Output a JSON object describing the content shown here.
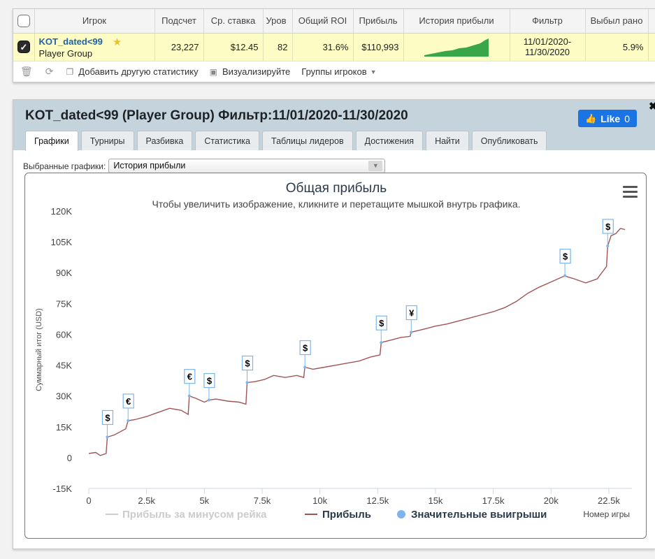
{
  "table": {
    "headers": [
      "Игрок",
      "Подсчет",
      "Ср. ставка",
      "Уров",
      "Общий ROI",
      "Прибыль",
      "История прибыли",
      "Фильтр",
      "Выбыл рано"
    ],
    "row": {
      "player": "KOT_dated<99",
      "group": "Player Group",
      "count": "23,227",
      "avg_stake": "$12.45",
      "level": "82",
      "roi": "31.6%",
      "profit": "$110,993",
      "filter_from": "11/01/2020-",
      "filter_to": "11/30/2020",
      "early_out": "5.9%"
    }
  },
  "toolbar": {
    "add_stat": "Добавить другую статистику",
    "visualize": "Визуализируйте",
    "groups": "Группы игроков"
  },
  "panel": {
    "title": "KOT_dated<99 (Player Group) Фильтр:11/01/2020-11/30/2020",
    "like_label": "Like",
    "like_count": "0",
    "tabs": [
      "Графики",
      "Турниры",
      "Разбивка",
      "Статистика",
      "Таблицы лидеров",
      "Достижения",
      "Найти",
      "Опубликовать"
    ],
    "active_tab": 0,
    "chart_select_label": "Выбранные графики:",
    "chart_select_value": "История прибыли"
  },
  "colors": {
    "profit_line": "#a05555",
    "rake_line": "#cccccc",
    "big_win_marker": "#7cb5ec",
    "accent_blue": "#1b74e4",
    "row_highlight": "#fcfcc4",
    "panel_header": "#c5d4dc"
  },
  "chart_data": {
    "type": "line",
    "title": "Общая прибыль",
    "subtitle": "Чтобы увеличить изображение, кликните и перетащите мышкой внутрь графика.",
    "xlabel": "Номер игры",
    "ylabel": "Суммарный итог (USD)",
    "xlim": [
      0,
      23500
    ],
    "ylim": [
      -15000,
      120000
    ],
    "x_ticks": [
      0,
      2500,
      5000,
      7500,
      10000,
      12500,
      15000,
      17500,
      20000,
      22500
    ],
    "x_tick_labels": [
      "0",
      "2.5k",
      "5k",
      "7.5k",
      "10k",
      "12.5k",
      "15k",
      "17.5k",
      "20k",
      "22.5k"
    ],
    "y_ticks": [
      -15000,
      0,
      15000,
      30000,
      45000,
      60000,
      75000,
      90000,
      105000,
      120000
    ],
    "y_tick_labels": [
      "-15K",
      "0",
      "15K",
      "30K",
      "45K",
      "60K",
      "75K",
      "90K",
      "105K",
      "120K"
    ],
    "grid": false,
    "legend": "bottom",
    "series": [
      {
        "name": "Прибыль за минусом рейка",
        "visible": false,
        "x": [],
        "y": []
      },
      {
        "name": "Прибыль",
        "x": [
          0,
          300,
          500,
          750,
          800,
          1100,
          1600,
          1700,
          2000,
          2500,
          3000,
          3500,
          4000,
          4300,
          4350,
          4600,
          5000,
          5200,
          5500,
          6000,
          6500,
          6800,
          6850,
          7200,
          7600,
          8000,
          8500,
          9000,
          9300,
          9350,
          9700,
          10200,
          10700,
          11200,
          11700,
          12200,
          12600,
          12650,
          13000,
          13500,
          13900,
          13950,
          14500,
          15000,
          15500,
          16000,
          16500,
          17000,
          17500,
          18000,
          18500,
          19000,
          19500,
          20000,
          20500,
          20600,
          20700,
          21000,
          21500,
          22000,
          22400,
          22450,
          22600,
          22800,
          23000,
          23200
        ],
        "y": [
          2000,
          2500,
          1000,
          2000,
          10000,
          11000,
          14000,
          18000,
          18500,
          20000,
          22000,
          24000,
          23000,
          21000,
          30000,
          29000,
          27000,
          28000,
          28500,
          27500,
          27000,
          26000,
          36500,
          37000,
          38000,
          40000,
          39000,
          40000,
          39000,
          44000,
          43000,
          44000,
          45000,
          46000,
          47000,
          49000,
          50000,
          56000,
          57000,
          58500,
          59000,
          61000,
          62500,
          64000,
          65000,
          66500,
          68000,
          69500,
          71000,
          73000,
          76000,
          80000,
          83000,
          85500,
          88000,
          88500,
          88000,
          87000,
          85000,
          87000,
          93000,
          103000,
          108000,
          109000,
          111500,
          111000
        ]
      },
      {
        "name": "Значительные выигрыши",
        "markers": [
          {
            "x": 800,
            "y": 10000,
            "label": "$"
          },
          {
            "x": 1700,
            "y": 18000,
            "label": "€"
          },
          {
            "x": 4350,
            "y": 30000,
            "label": "€"
          },
          {
            "x": 5200,
            "y": 28000,
            "label": "$"
          },
          {
            "x": 6850,
            "y": 36500,
            "label": "$"
          },
          {
            "x": 9350,
            "y": 44000,
            "label": "$"
          },
          {
            "x": 12650,
            "y": 56000,
            "label": "$"
          },
          {
            "x": 13950,
            "y": 61000,
            "label": "¥"
          },
          {
            "x": 20600,
            "y": 88500,
            "label": "$"
          },
          {
            "x": 22450,
            "y": 103000,
            "label": "$"
          }
        ]
      }
    ]
  }
}
